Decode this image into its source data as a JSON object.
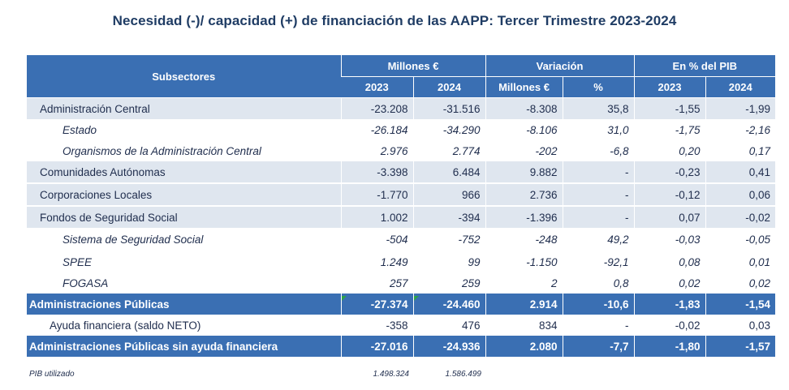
{
  "title": "Necesidad (-)/ capacidad (+) de financiación de las AAPP:  Tercer Trimestre 2023-2024",
  "header": {
    "subsectores": "Subsectores",
    "millones": "Millones €",
    "variacion": "Variación",
    "pib": "En % del PIB",
    "y2023": "2023",
    "y2024": "2024",
    "var_millones": "Millones €",
    "var_pct": "%",
    "pib2023": "2023",
    "pib2024": "2024"
  },
  "rows": [
    {
      "label": "Administración Central",
      "m2023": "-23.208",
      "m2024": "-31.516",
      "vmill": "-8.308",
      "vpct": "35,8",
      "p2023": "-1,55",
      "p2024": "-1,99"
    },
    {
      "label": "Estado",
      "m2023": "-26.184",
      "m2024": "-34.290",
      "vmill": "-8.106",
      "vpct": "31,0",
      "p2023": "-1,75",
      "p2024": "-2,16"
    },
    {
      "label": "Organismos de la Administración Central",
      "m2023": "2.976",
      "m2024": "2.774",
      "vmill": "-202",
      "vpct": "-6,8",
      "p2023": "0,20",
      "p2024": "0,17"
    },
    {
      "label": "Comunidades Autónomas",
      "m2023": "-3.398",
      "m2024": "6.484",
      "vmill": "9.882",
      "vpct": "-",
      "p2023": "-0,23",
      "p2024": "0,41"
    },
    {
      "label": "Corporaciones Locales",
      "m2023": "-1.770",
      "m2024": "966",
      "vmill": "2.736",
      "vpct": "-",
      "p2023": "-0,12",
      "p2024": "0,06"
    },
    {
      "label": "Fondos de Seguridad Social",
      "m2023": "1.002",
      "m2024": "-394",
      "vmill": "-1.396",
      "vpct": "-",
      "p2023": "0,07",
      "p2024": "-0,02"
    },
    {
      "label": "Sistema de Seguridad Social",
      "m2023": "-504",
      "m2024": "-752",
      "vmill": "-248",
      "vpct": "49,2",
      "p2023": "-0,03",
      "p2024": "-0,05"
    },
    {
      "label": "SPEE",
      "m2023": "1.249",
      "m2024": "99",
      "vmill": "-1.150",
      "vpct": "-92,1",
      "p2023": "0,08",
      "p2024": "0,01"
    },
    {
      "label": "FOGASA",
      "m2023": "257",
      "m2024": "259",
      "vmill": "2",
      "vpct": "0,8",
      "p2023": "0,02",
      "p2024": "0,02"
    },
    {
      "label": "Administraciones Públicas",
      "m2023": "-27.374",
      "m2024": "-24.460",
      "vmill": "2.914",
      "vpct": "-10,6",
      "p2023": "-1,83",
      "p2024": "-1,54"
    },
    {
      "label": "Ayuda financiera (saldo NETO)",
      "m2023": "-358",
      "m2024": "476",
      "vmill": "834",
      "vpct": "-",
      "p2023": "-0,02",
      "p2024": "0,03"
    },
    {
      "label": "Administraciones Públicas sin  ayuda financiera",
      "m2023": "-27.016",
      "m2024": "-24.936",
      "vmill": "2.080",
      "vpct": "-7,7",
      "p2023": "-1,80",
      "p2024": "-1,57"
    }
  ],
  "footer": {
    "label": "PIB utilizado",
    "pib2023": "1.498.324",
    "pib2024": "1.586.499"
  },
  "colors": {
    "header_bg": "#3a6fb3",
    "shade_bg": "#dfe6ef",
    "title": "#1f3c64",
    "marker": "#2ca24a"
  }
}
